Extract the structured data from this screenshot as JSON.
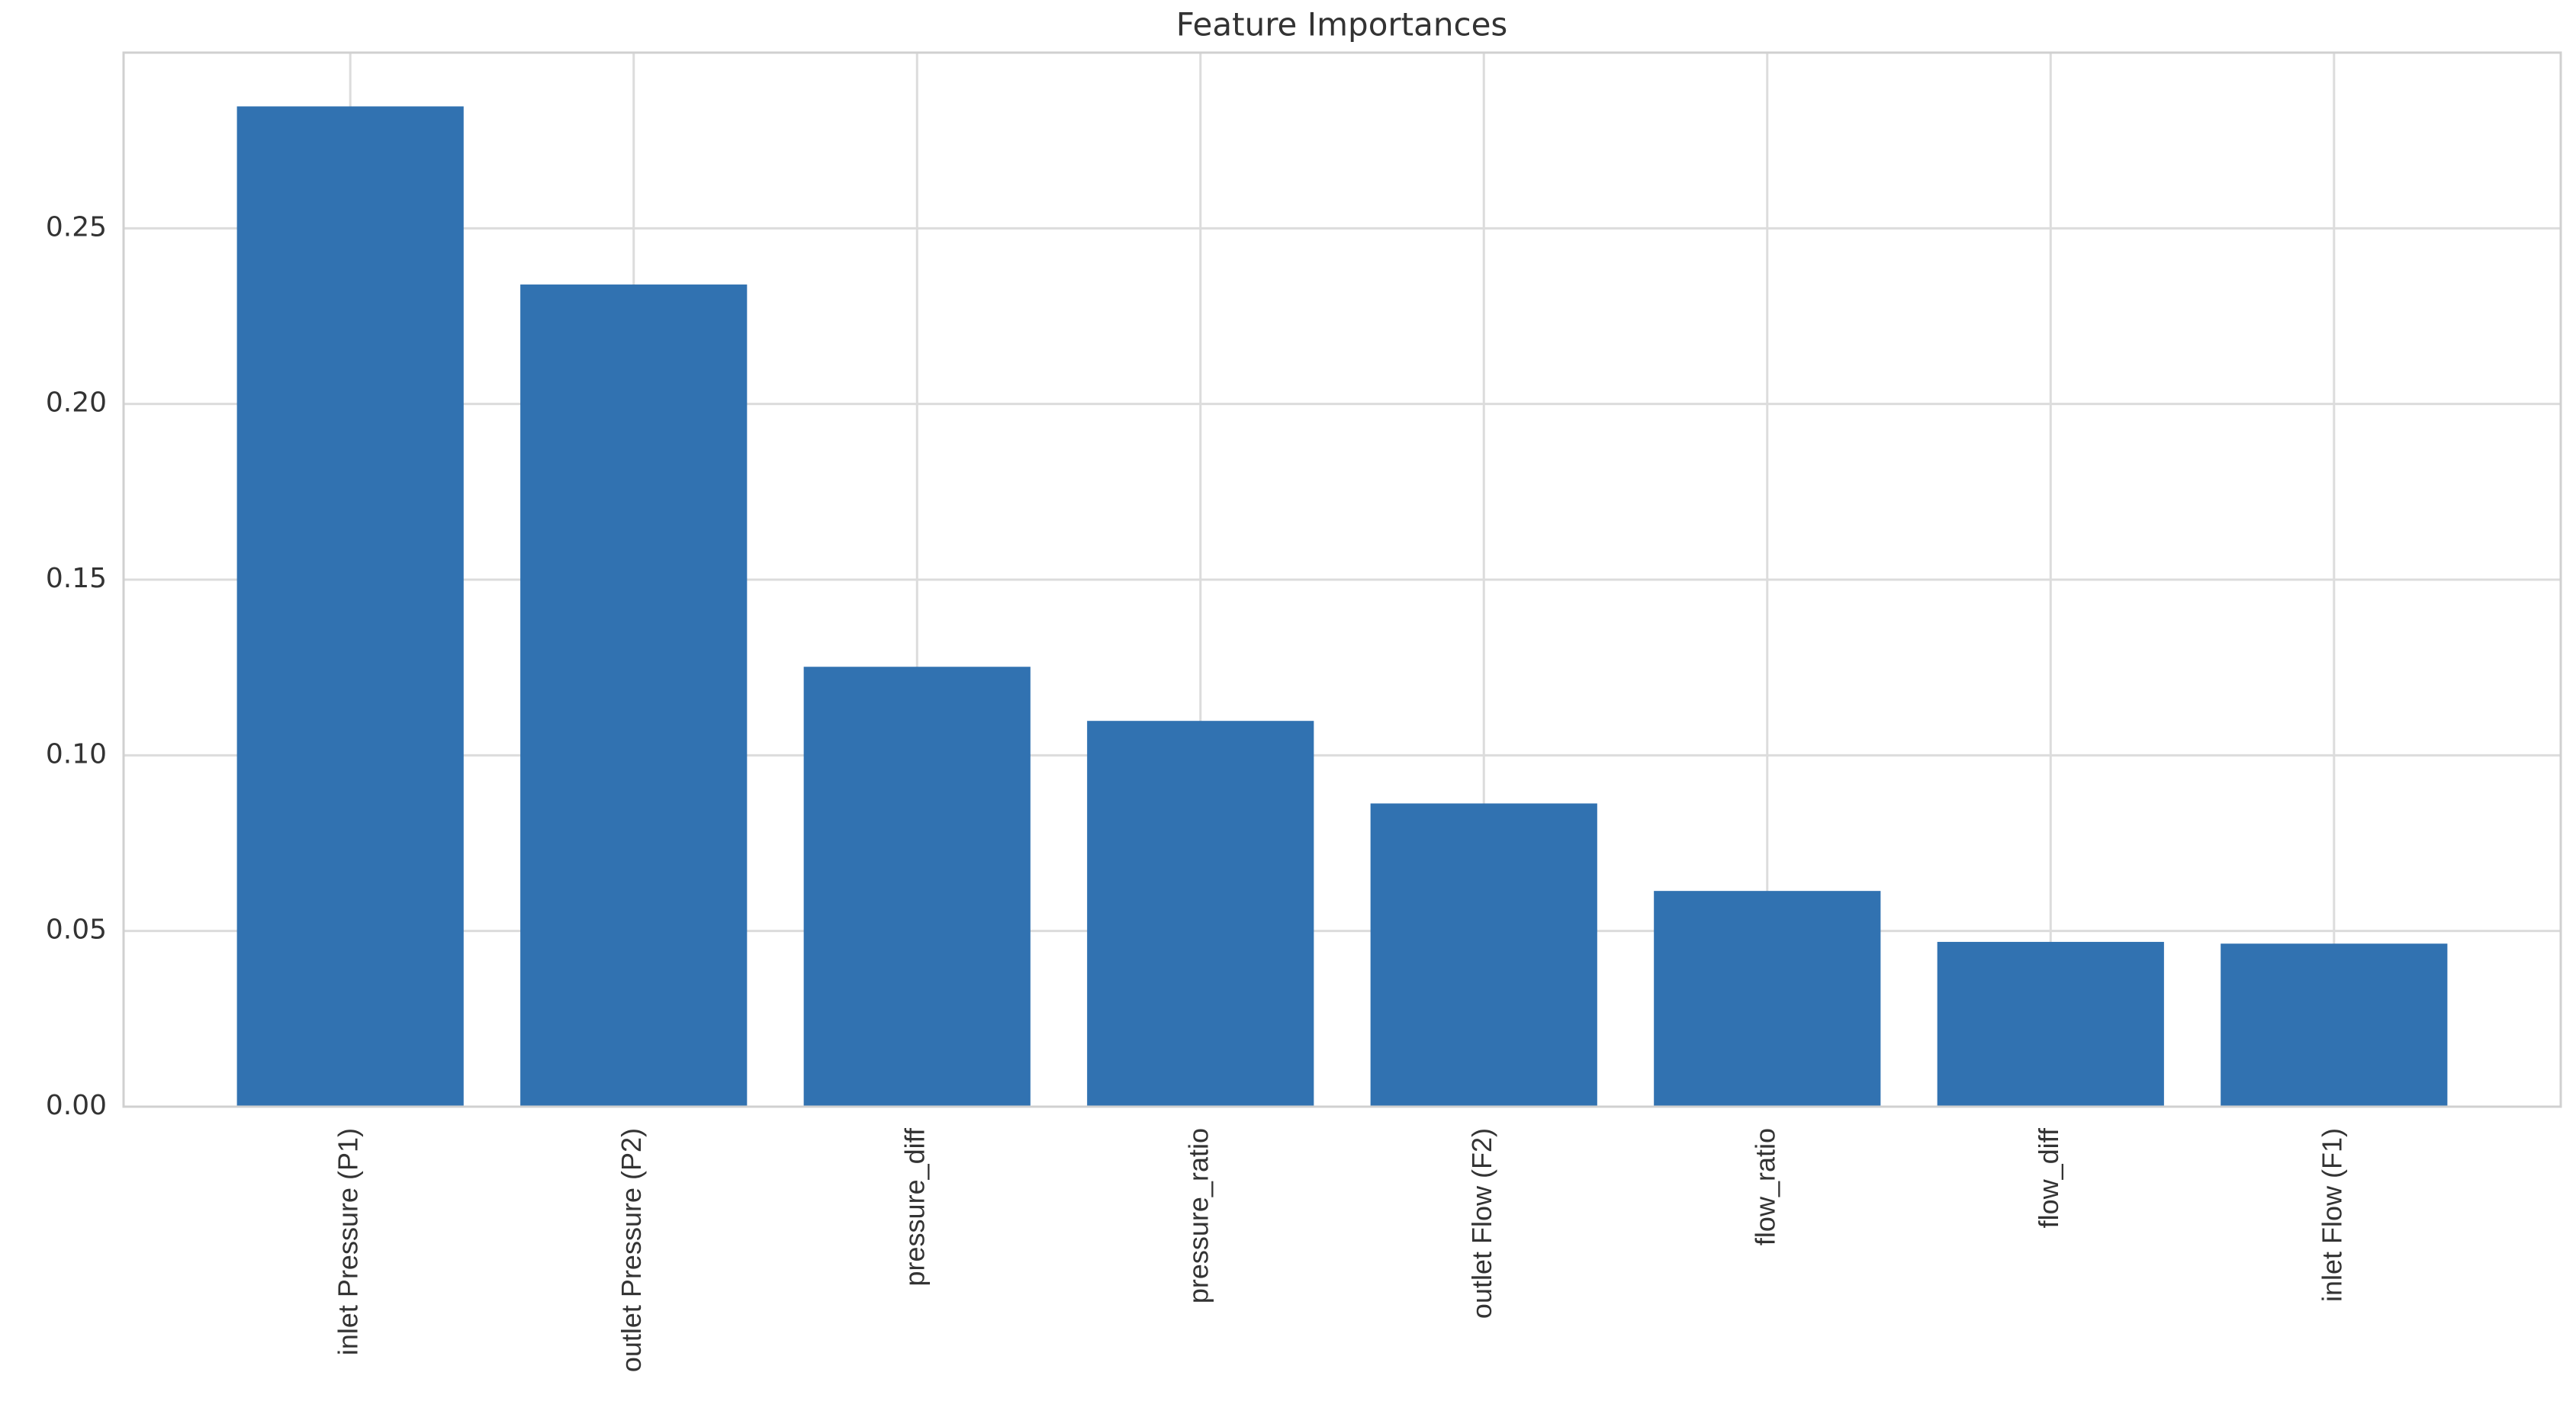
{
  "chart_data": {
    "type": "bar",
    "title": "Feature Importances",
    "categories": [
      "inlet Pressure (P1)",
      "outlet Pressure (P2)",
      "pressure_diff",
      "pressure_ratio",
      "outlet Flow (F2)",
      "flow_ratio",
      "flow_diff",
      "inlet Flow (F1)"
    ],
    "values": [
      0.2847,
      0.234,
      0.1252,
      0.1098,
      0.0863,
      0.0614,
      0.0469,
      0.0464
    ],
    "color": "#3172b1",
    "ylim": [
      0,
      0.3
    ],
    "yticks": [
      {
        "value": 0,
        "label": "0.00"
      },
      {
        "value": 0.05,
        "label": "0.05"
      },
      {
        "value": 0.1,
        "label": "0.10"
      },
      {
        "value": 0.15,
        "label": "0.15"
      },
      {
        "value": 0.2,
        "label": "0.20"
      },
      {
        "value": 0.25,
        "label": "0.25"
      }
    ],
    "grid": true
  }
}
